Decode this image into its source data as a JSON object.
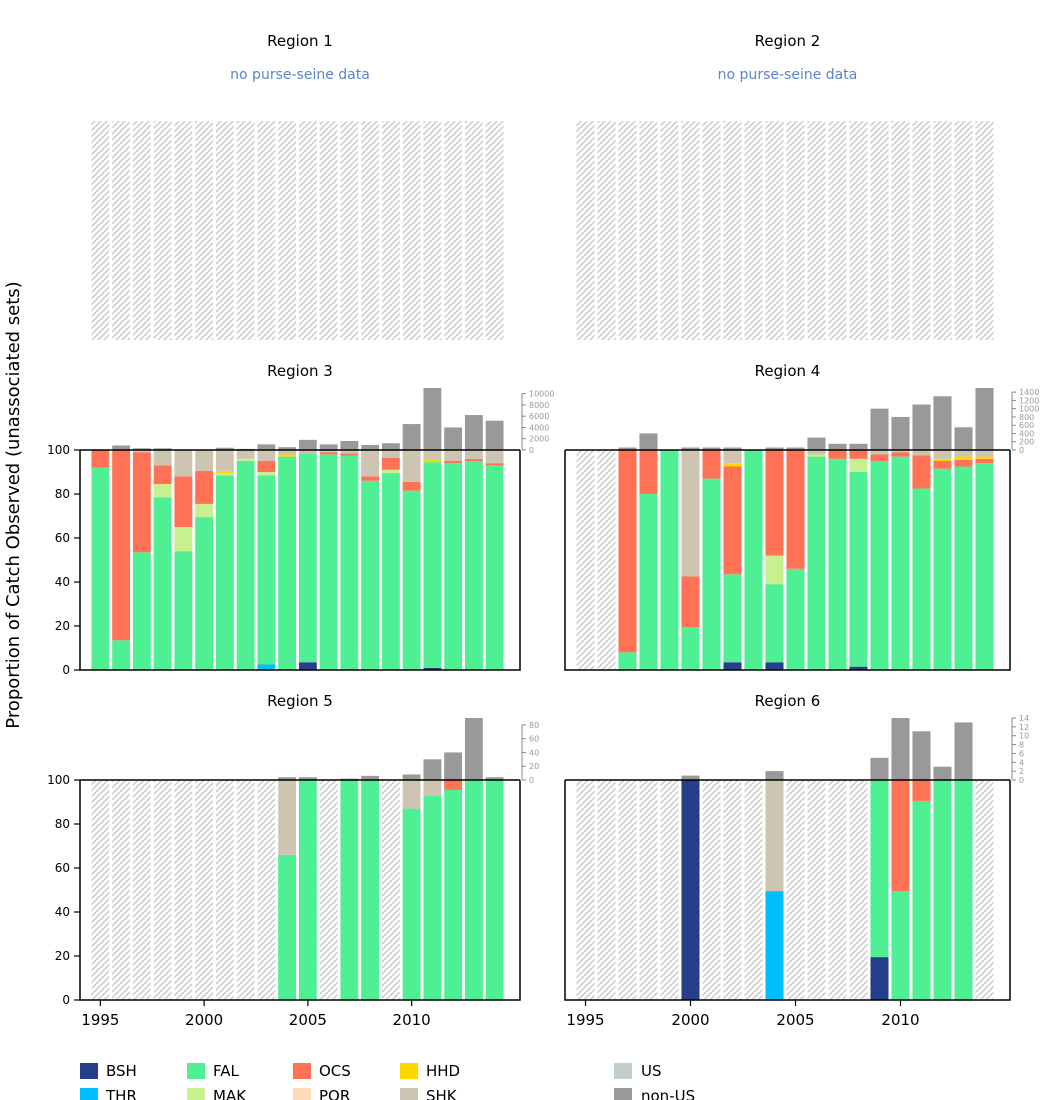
{
  "figure": {
    "ylabel": "Proportion of Catch Observed (unassociated sets)",
    "colors": {
      "BSH": "#263F8A",
      "THR": "#00BFFF",
      "FAL": "#4FEF93",
      "MAK": "#C7F08E",
      "OCS": "#FF7256",
      "POR": "#FFDAB9",
      "HHD": "#FFD700",
      "SHK": "#CDC5B1",
      "US": "#C1CDCD",
      "non-US": "#999999",
      "hatch": "#c8c8c8"
    },
    "legend": {
      "species": [
        {
          "code": "BSH",
          "label": "BSH"
        },
        {
          "code": "THR",
          "label": "THR"
        },
        {
          "code": "FAL",
          "label": "FAL"
        },
        {
          "code": "MAK",
          "label": "MAK"
        },
        {
          "code": "OCS",
          "label": "OCS"
        },
        {
          "code": "POR",
          "label": "POR"
        },
        {
          "code": "HHD",
          "label": "HHD"
        },
        {
          "code": "SHK",
          "label": "SHK"
        }
      ],
      "flag": [
        {
          "code": "US",
          "label": "US"
        },
        {
          "code": "non-US",
          "label": "non-US"
        }
      ]
    }
  },
  "chart_data": [
    {
      "type": "bar",
      "title": "Region 1",
      "note": "no purse-seine data",
      "years": [
        1995,
        1996,
        1997,
        1998,
        1999,
        2000,
        2001,
        2002,
        2003,
        2004,
        2005,
        2006,
        2007,
        2008,
        2009,
        2010,
        2011,
        2012,
        2013,
        2014
      ],
      "has_data": false,
      "x_ticks": [],
      "y_ticks": [],
      "top_ticks": [],
      "composition": [],
      "totals": []
    },
    {
      "type": "bar",
      "title": "Region 2",
      "note": "no purse-seine data",
      "years": [
        1995,
        1996,
        1997,
        1998,
        1999,
        2000,
        2001,
        2002,
        2003,
        2004,
        2005,
        2006,
        2007,
        2008,
        2009,
        2010,
        2011,
        2012,
        2013,
        2014
      ],
      "has_data": false,
      "x_ticks": [],
      "y_ticks": [],
      "top_ticks": [],
      "composition": [],
      "totals": []
    },
    {
      "type": "bar",
      "title": "Region 3",
      "note": "",
      "years": [
        1995,
        1996,
        1997,
        1998,
        1999,
        2000,
        2001,
        2002,
        2003,
        2004,
        2005,
        2006,
        2007,
        2008,
        2009,
        2010,
        2011,
        2012,
        2013,
        2014
      ],
      "has_data": true,
      "x_ticks": [],
      "y_ticks": [
        "0",
        "20",
        "40",
        "60",
        "80",
        "100"
      ],
      "top_max": 11000,
      "top_ticks": [
        {
          "value": 0,
          "label": "0"
        },
        {
          "value": 2000,
          "label": "2000"
        },
        {
          "value": 4000,
          "label": "4000"
        },
        {
          "value": 6000,
          "label": "6000"
        },
        {
          "value": 8000,
          "label": "8000"
        },
        {
          "value": 10000,
          "label": "10000"
        }
      ],
      "composition": [
        {
          "FAL": 92,
          "OCS": 8
        },
        {
          "FAL": 13.5,
          "OCS": 86.5
        },
        {
          "FAL": 53.5,
          "OCS": 45.5,
          "SHK": 1
        },
        {
          "FAL": 78.5,
          "MAK": 6,
          "OCS": 8.5,
          "SHK": 7
        },
        {
          "FAL": 54,
          "MAK": 11,
          "OCS": 23,
          "SHK": 12
        },
        {
          "FAL": 69.5,
          "MAK": 6,
          "OCS": 15,
          "SHK": 9.5
        },
        {
          "FAL": 88.5,
          "MAK": 1,
          "HHD": 1,
          "SHK": 9.5
        },
        {
          "FAL": 95,
          "MAK": 1,
          "SHK": 4
        },
        {
          "THR": 2.5,
          "FAL": 86,
          "MAK": 1.5,
          "OCS": 5,
          "SHK": 5
        },
        {
          "FAL": 97,
          "HHD": 1,
          "SHK": 2
        },
        {
          "BSH": 3.5,
          "FAL": 95,
          "SHK": 1.5
        },
        {
          "FAL": 98,
          "OCS": 1,
          "SHK": 1
        },
        {
          "FAL": 97.5,
          "OCS": 1,
          "SHK": 1.5
        },
        {
          "FAL": 86,
          "OCS": 2,
          "SHK": 12
        },
        {
          "FAL": 89.5,
          "MAK": 1.5,
          "OCS": 5.5,
          "SHK": 3.5
        },
        {
          "FAL": 81.5,
          "OCS": 4,
          "SHK": 14.5
        },
        {
          "BSH": 1,
          "FAL": 93.5,
          "HHD": 1,
          "SHK": 4.5
        },
        {
          "FAL": 94,
          "OCS": 1,
          "SHK": 5
        },
        {
          "FAL": 95,
          "OCS": 1,
          "SHK": 4
        },
        {
          "FAL": 93,
          "OCS": 1,
          "SHK": 6
        }
      ],
      "totals": [
        0,
        800,
        300,
        300,
        0,
        0,
        400,
        200,
        1000,
        500,
        1800,
        1000,
        1600,
        900,
        1200,
        4600,
        11000,
        4000,
        6200,
        5200
      ]
    },
    {
      "type": "bar",
      "title": "Region 4",
      "note": "",
      "years": [
        1995,
        1996,
        1997,
        1998,
        1999,
        2000,
        2001,
        2002,
        2003,
        2004,
        2005,
        2006,
        2007,
        2008,
        2009,
        2010,
        2011,
        2012,
        2013,
        2014
      ],
      "has_data": true,
      "x_ticks": [],
      "y_ticks": [],
      "top_max": 1500,
      "top_ticks": [
        {
          "value": 0,
          "label": "0"
        },
        {
          "value": 200,
          "label": "200"
        },
        {
          "value": 400,
          "label": "400"
        },
        {
          "value": 600,
          "label": "600"
        },
        {
          "value": 800,
          "label": "800"
        },
        {
          "value": 1000,
          "label": "1000"
        },
        {
          "value": 1200,
          "label": "1200"
        },
        {
          "value": 1400,
          "label": "1400"
        }
      ],
      "composition": [
        null,
        null,
        {
          "FAL": 8,
          "OCS": 92
        },
        {
          "FAL": 80,
          "OCS": 20
        },
        {
          "FAL": 100
        },
        {
          "FAL": 19.5,
          "OCS": 23,
          "SHK": 57.5
        },
        {
          "FAL": 87,
          "OCS": 13
        },
        {
          "BSH": 3.5,
          "FAL": 40,
          "HHD": 1.5,
          "OCS": 49,
          "SHK": 6
        },
        {
          "FAL": 100
        },
        {
          "BSH": 3.5,
          "FAL": 35.5,
          "MAK": 13,
          "OCS": 48
        },
        {
          "FAL": 46,
          "OCS": 54
        },
        {
          "FAL": 97,
          "MAK": 1,
          "SHK": 2
        },
        {
          "FAL": 96,
          "OCS": 4
        },
        {
          "BSH": 1.5,
          "FAL": 88.5,
          "MAK": 6,
          "OCS": 4
        },
        {
          "FAL": 95,
          "OCS": 3,
          "SHK": 2
        },
        {
          "FAL": 97,
          "OCS": 2,
          "SHK": 1
        },
        {
          "FAL": 82.5,
          "OCS": 15,
          "SHK": 2.5
        },
        {
          "FAL": 91.5,
          "OCS": 3.5,
          "HHD": 1,
          "SHK": 4
        },
        {
          "FAL": 92.5,
          "OCS": 3,
          "HHD": 1.5,
          "SHK": 3
        },
        {
          "FAL": 94,
          "OCS": 2,
          "HHD": 1,
          "SHK": 3
        }
      ],
      "totals": [
        0,
        0,
        60,
        400,
        0,
        60,
        60,
        60,
        0,
        60,
        60,
        300,
        150,
        150,
        1000,
        800,
        1100,
        1300,
        550,
        1500
      ]
    },
    {
      "type": "bar",
      "title": "Region 5",
      "note": "",
      "years": [
        1995,
        1996,
        1997,
        1998,
        1999,
        2000,
        2001,
        2002,
        2003,
        2004,
        2005,
        2006,
        2007,
        2008,
        2009,
        2010,
        2011,
        2012,
        2013,
        2014
      ],
      "has_data": true,
      "x_ticks": [
        {
          "year": 1995,
          "label": "1995"
        },
        {
          "year": 2000,
          "label": "2000"
        },
        {
          "year": 2005,
          "label": "2005"
        },
        {
          "year": 2010,
          "label": "2010"
        }
      ],
      "y_ticks": [
        "0",
        "20",
        "40",
        "60",
        "80",
        "100"
      ],
      "top_max": 90,
      "top_ticks": [
        {
          "value": 0,
          "label": "0"
        },
        {
          "value": 20,
          "label": "20"
        },
        {
          "value": 40,
          "label": "40"
        },
        {
          "value": 60,
          "label": "60"
        },
        {
          "value": 80,
          "label": "80"
        }
      ],
      "composition": [
        null,
        null,
        null,
        null,
        null,
        null,
        null,
        null,
        null,
        {
          "FAL": 66,
          "SHK": 34
        },
        {
          "FAL": 100
        },
        null,
        {
          "FAL": 100
        },
        {
          "FAL": 100
        },
        null,
        {
          "FAL": 87,
          "SHK": 13
        },
        {
          "FAL": 93,
          "SHK": 7
        },
        {
          "FAL": 95.5,
          "OCS": 4.5
        },
        {
          "FAL": 100
        },
        {
          "FAL": 100
        }
      ],
      "totals": [
        0,
        0,
        0,
        0,
        0,
        0,
        0,
        0,
        0,
        4,
        4,
        0,
        2,
        6,
        0,
        8,
        30,
        40,
        90,
        4
      ]
    },
    {
      "type": "bar",
      "title": "Region 6",
      "note": "",
      "years": [
        1995,
        1996,
        1997,
        1998,
        1999,
        2000,
        2001,
        2002,
        2003,
        2004,
        2005,
        2006,
        2007,
        2008,
        2009,
        2010,
        2011,
        2012,
        2013,
        2014
      ],
      "has_data": true,
      "x_ticks": [
        {
          "year": 1995,
          "label": "1995"
        },
        {
          "year": 2000,
          "label": "2000"
        },
        {
          "year": 2005,
          "label": "2005"
        },
        {
          "year": 2010,
          "label": "2010"
        }
      ],
      "y_ticks": [],
      "top_max": 14,
      "top_ticks": [
        {
          "value": 0,
          "label": "0"
        },
        {
          "value": 2,
          "label": "2"
        },
        {
          "value": 4,
          "label": "4"
        },
        {
          "value": 6,
          "label": "6"
        },
        {
          "value": 8,
          "label": "8"
        },
        {
          "value": 10,
          "label": "10"
        },
        {
          "value": 12,
          "label": "12"
        },
        {
          "value": 14,
          "label": "14"
        }
      ],
      "composition": [
        null,
        null,
        null,
        null,
        null,
        {
          "BSH": 100
        },
        null,
        null,
        null,
        {
          "THR": 49.5,
          "SHK": 50.5
        },
        null,
        null,
        null,
        null,
        {
          "BSH": 19.5,
          "FAL": 80.5
        },
        {
          "FAL": 49.5,
          "OCS": 50.5
        },
        {
          "FAL": 90.5,
          "OCS": 9.5
        },
        {
          "FAL": 100
        },
        {
          "FAL": 100
        },
        null
      ],
      "totals": [
        0,
        0,
        0,
        0,
        0,
        1,
        0,
        0,
        0,
        2,
        0,
        0,
        0,
        0,
        5,
        14,
        11,
        3,
        13,
        0
      ]
    }
  ]
}
